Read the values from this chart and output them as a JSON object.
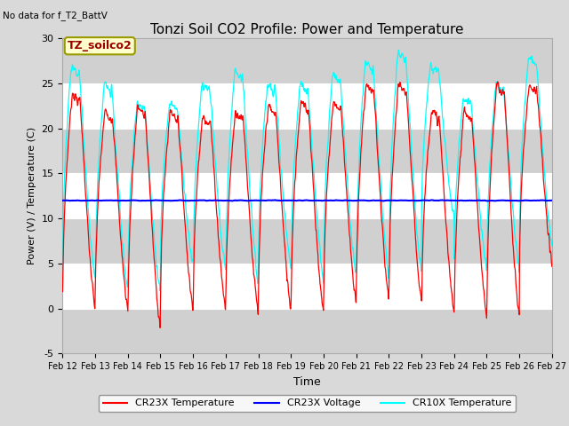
{
  "title": "Tonzi Soil CO2 Profile: Power and Temperature",
  "no_data_text": "No data for f_T2_BattV",
  "ylabel": "Power (V) / Temperature (C)",
  "xlabel": "Time",
  "ylim": [
    -5,
    30
  ],
  "yticks": [
    -5,
    0,
    5,
    10,
    15,
    20,
    25,
    30
  ],
  "x_tick_labels": [
    "Feb 12",
    "Feb 13",
    "Feb 14",
    "Feb 15",
    "Feb 16",
    "Feb 17",
    "Feb 18",
    "Feb 19",
    "Feb 20",
    "Feb 21",
    "Feb 22",
    "Feb 23",
    "Feb 24",
    "Feb 25",
    "Feb 26",
    "Feb 27"
  ],
  "voltage_value": 12.0,
  "legend_entries": [
    "CR23X Temperature",
    "CR23X Voltage",
    "CR10X Temperature"
  ],
  "box_label": "TZ_soilco2",
  "box_color": "#ffffcc",
  "box_edge_color": "#999900",
  "fig_bg_color": "#d9d9d9",
  "plot_bg_color": "#ffffff",
  "stripe_color": "#d0d0d0",
  "title_fontsize": 11,
  "label_fontsize": 8,
  "tick_fontsize": 8,
  "n_days": 15,
  "n_points_per_day": 96,
  "voltage_noise": 0.05,
  "cr23x_base": 0.0,
  "cr23x_peak_max": 24.0,
  "cr10x_base": 3.0,
  "cr10x_peak_max": 27.5
}
